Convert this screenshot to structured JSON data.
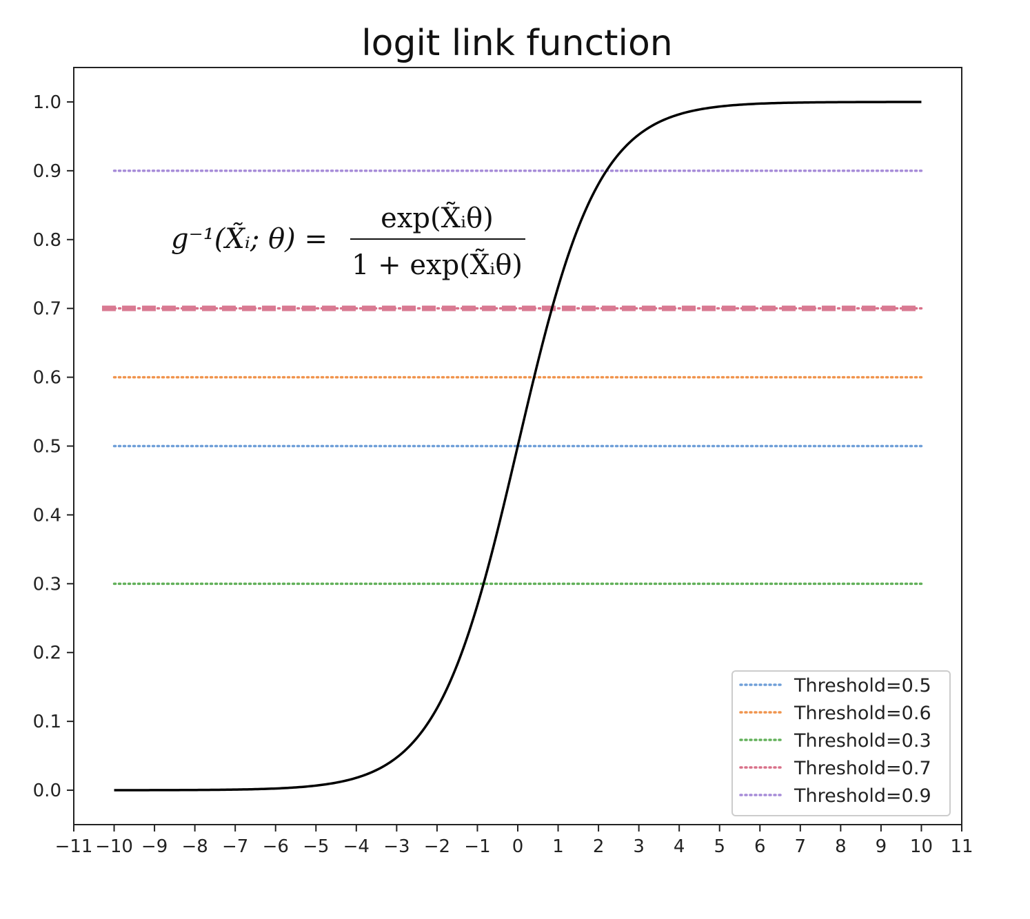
{
  "chart_data": {
    "type": "line",
    "title": "logit link function",
    "xlim": [
      -11,
      11
    ],
    "ylim": [
      -0.05,
      1.05
    ],
    "x_ticks": [
      -11,
      -10,
      -9,
      -8,
      -7,
      -6,
      -5,
      -4,
      -3,
      -2,
      -1,
      0,
      1,
      2,
      3,
      4,
      5,
      6,
      7,
      8,
      9,
      10,
      11
    ],
    "x_tick_labels": [
      "−11",
      "−10",
      "−9",
      "−8",
      "−7",
      "−6",
      "−5",
      "−4",
      "−3",
      "−2",
      "−1",
      "0",
      "1",
      "2",
      "3",
      "4",
      "5",
      "6",
      "7",
      "8",
      "9",
      "10",
      "11"
    ],
    "y_ticks": [
      0.0,
      0.1,
      0.2,
      0.3,
      0.4,
      0.5,
      0.6,
      0.7,
      0.8,
      0.9,
      1.0
    ],
    "y_tick_labels": [
      "0.0",
      "0.1",
      "0.2",
      "0.3",
      "0.4",
      "0.5",
      "0.6",
      "0.7",
      "0.8",
      "0.9",
      "1.0"
    ],
    "grid": false,
    "curve": {
      "x": [
        -10,
        -9,
        -8,
        -7,
        -6,
        -5,
        -4,
        -3,
        -2,
        -1.5,
        -1,
        -0.5,
        0,
        0.5,
        1,
        1.5,
        2,
        3,
        4,
        5,
        6,
        7,
        8,
        9,
        10
      ],
      "y": [
        4.54e-05,
        0.000123,
        0.000335,
        0.000911,
        0.00247,
        0.00669,
        0.018,
        0.0474,
        0.1192,
        0.1824,
        0.2689,
        0.3775,
        0.5,
        0.6225,
        0.7311,
        0.8176,
        0.8808,
        0.9526,
        0.982,
        0.9933,
        0.9975,
        0.9991,
        0.9997,
        0.9999,
        0.99995
      ],
      "color": "#000000"
    },
    "series": [
      {
        "name": "Threshold=0.5",
        "y": 0.5,
        "x_range": [
          -10,
          10
        ],
        "color": "#6f9fd8",
        "style": "dotted"
      },
      {
        "name": "Threshold=0.6",
        "y": 0.6,
        "x_range": [
          -10,
          10
        ],
        "color": "#f0944d",
        "style": "dotted"
      },
      {
        "name": "Threshold=0.3",
        "y": 0.3,
        "x_range": [
          -10,
          10
        ],
        "color": "#62b05a",
        "style": "dotted"
      },
      {
        "name": "Threshold=0.7",
        "y": 0.7,
        "x_range": [
          -10,
          10
        ],
        "color": "#d97089",
        "style": "dotted"
      },
      {
        "name": "Threshold=0.9",
        "y": 0.9,
        "x_range": [
          -10,
          10
        ],
        "color": "#a68bd8",
        "style": "dotted"
      }
    ],
    "highlight_line": {
      "y": 0.7,
      "x_range": [
        -10.3,
        10
      ],
      "color": "#d97a92",
      "style": "dashed"
    },
    "legend_placement": "lower-right",
    "annotation": {
      "lhs": "g⁻¹(X̃ᵢ; θ) =",
      "numerator": "exp(X̃ᵢθ)",
      "denominator": "1 + exp(X̃ᵢθ)"
    }
  }
}
